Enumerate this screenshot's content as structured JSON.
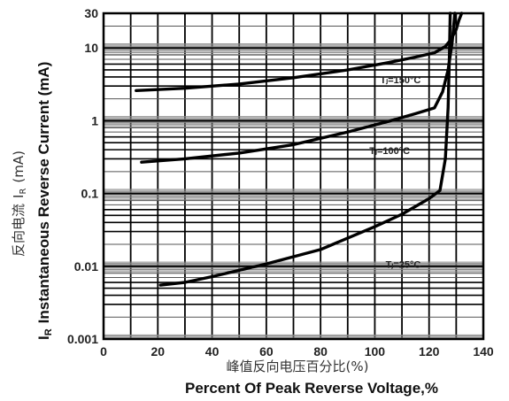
{
  "chart_data": {
    "type": "line",
    "x_axis": {
      "label_cn": "峰值反向电压百分比(%)",
      "label_en": "Percent  Of Peak Reverse Voltage,%",
      "range": [
        0,
        140
      ],
      "ticks": [
        0,
        20,
        40,
        60,
        80,
        100,
        120,
        140
      ],
      "tick_labels": [
        "0",
        "20",
        "40",
        "60",
        "80",
        "100",
        "120",
        "140"
      ]
    },
    "y_axis": {
      "label_en": "Instantaneous Reverse Current (mA)",
      "label_symbol": "I",
      "label_subscript": "R",
      "label_cn": "反向电流",
      "label_cn_unit": "(mA)",
      "scale": "log",
      "range": [
        0.001,
        30
      ],
      "ticks": [
        0.001,
        0.01,
        0.1,
        1,
        10,
        30
      ],
      "tick_labels": [
        "0.001",
        "0.01",
        "0.1",
        "1",
        "10",
        "30"
      ]
    },
    "grid": true,
    "series": [
      {
        "name": "T_J=150°C",
        "label": "Tⱼ=150°C",
        "points": [
          [
            12,
            2.6
          ],
          [
            30,
            2.8
          ],
          [
            50,
            3.2
          ],
          [
            70,
            3.9
          ],
          [
            90,
            5.0
          ],
          [
            105,
            6.3
          ],
          [
            115,
            7.5
          ],
          [
            122,
            8.6
          ],
          [
            126,
            10.5
          ],
          [
            128,
            13
          ],
          [
            130,
            18
          ],
          [
            131,
            24
          ],
          [
            132,
            30
          ]
        ]
      },
      {
        "name": "T_J=100°C",
        "label": "Tⱼ=100°C",
        "points": [
          [
            14,
            0.27
          ],
          [
            30,
            0.3
          ],
          [
            50,
            0.36
          ],
          [
            70,
            0.47
          ],
          [
            90,
            0.7
          ],
          [
            105,
            0.98
          ],
          [
            115,
            1.25
          ],
          [
            122,
            1.5
          ],
          [
            125,
            2.5
          ],
          [
            127,
            5
          ],
          [
            128.5,
            12
          ],
          [
            129.5,
            30
          ]
        ]
      },
      {
        "name": "T_J=25°C",
        "label": "Tⱼ=25°C",
        "points": [
          [
            21,
            0.0055
          ],
          [
            30,
            0.006
          ],
          [
            40,
            0.0072
          ],
          [
            60,
            0.0108
          ],
          [
            80,
            0.017
          ],
          [
            100,
            0.035
          ],
          [
            110,
            0.052
          ],
          [
            120,
            0.085
          ],
          [
            124,
            0.11
          ],
          [
            126,
            0.3
          ],
          [
            127,
            1.5
          ],
          [
            127.5,
            8
          ],
          [
            127.8,
            30
          ]
        ]
      }
    ]
  }
}
